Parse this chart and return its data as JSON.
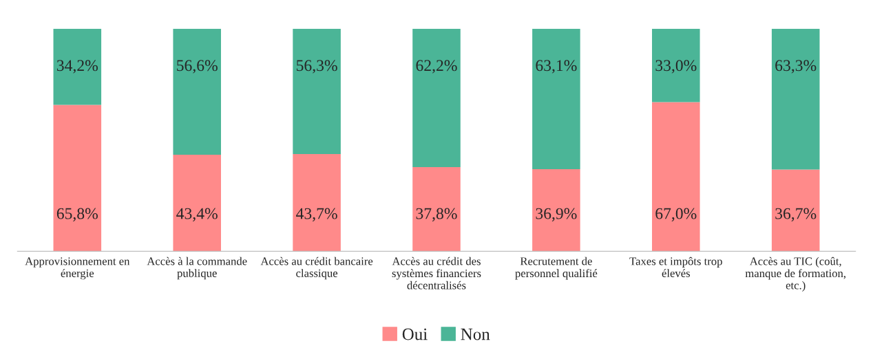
{
  "chart_data": {
    "type": "bar",
    "stacked": true,
    "legend": "bottom",
    "grid": false,
    "categories": [
      "Approvisionnement en énergie",
      "Accès à la commande publique",
      "Accès au crédit bancaire classique",
      "Accès au crédit des systèmes financiers décentralisés",
      "Recrutement de personnel qualifié",
      "Taxes et impôts trop élevés",
      "Accès au TIC (coût, manque de formation, etc.)"
    ],
    "series": [
      {
        "name": "Oui",
        "color": "#ff8a8a",
        "values": [
          65.8,
          43.4,
          43.7,
          37.8,
          36.9,
          67.0,
          36.7
        ],
        "value_labels": [
          "65,8%",
          "43,4%",
          "43,7%",
          "37,8%",
          "36,9%",
          "67,0%",
          "36,7%"
        ]
      },
      {
        "name": "Non",
        "color": "#4bb597",
        "values": [
          34.2,
          56.6,
          56.3,
          62.2,
          63.1,
          33.0,
          63.3
        ],
        "value_labels": [
          "34,2%",
          "56,6%",
          "56,3%",
          "62,2%",
          "63,1%",
          "33,0%",
          "63,3%"
        ]
      }
    ]
  }
}
